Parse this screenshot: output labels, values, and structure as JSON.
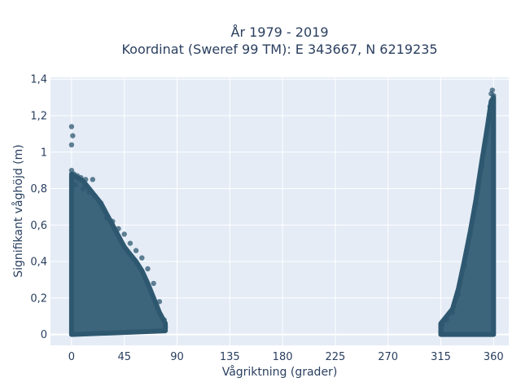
{
  "chart_data": {
    "type": "scatter",
    "title_lines": [
      "År 1979 - 2019",
      "Koordinat (Sweref 99 TM): E 343667, N 6219235"
    ],
    "xlabel": "Vågriktning (grader)",
    "ylabel": "Signifikant våghöjd (m)",
    "xlim": [
      -18,
      373
    ],
    "ylim": [
      -0.06,
      1.41
    ],
    "x_ticks": [
      0,
      45,
      90,
      135,
      180,
      225,
      270,
      315,
      360
    ],
    "x_tick_labels": [
      "0",
      "45",
      "90",
      "135",
      "180",
      "225",
      "270",
      "315",
      "360"
    ],
    "y_ticks": [
      0,
      0.2,
      0.4,
      0.6,
      0.8,
      1.0,
      1.2,
      1.4
    ],
    "y_tick_labels": [
      "0",
      "0,2",
      "0,4",
      "0,6",
      "0,8",
      "1",
      "1,2",
      "1,4"
    ],
    "grid": true,
    "legend": "none",
    "colors": {
      "marker": "#2e5870",
      "plot_bg": "#e5ecf6",
      "grid": "#ffffff",
      "text": "#2a3f5f"
    },
    "series": [
      {
        "points": [
          [
            0,
            1.14
          ],
          [
            1,
            1.09
          ],
          [
            0,
            1.04
          ],
          [
            0,
            0.9
          ],
          [
            2,
            0.88
          ],
          [
            5,
            0.87
          ],
          [
            8,
            0.86
          ],
          [
            12,
            0.85
          ],
          [
            18,
            0.85
          ],
          [
            3,
            0.82
          ],
          [
            10,
            0.8
          ],
          [
            15,
            0.78
          ],
          [
            20,
            0.76
          ],
          [
            25,
            0.72
          ],
          [
            28,
            0.68
          ],
          [
            30,
            0.64
          ],
          [
            35,
            0.62
          ],
          [
            40,
            0.58
          ],
          [
            45,
            0.55
          ],
          [
            50,
            0.5
          ],
          [
            55,
            0.46
          ],
          [
            60,
            0.42
          ],
          [
            65,
            0.36
          ],
          [
            70,
            0.28
          ],
          [
            75,
            0.18
          ],
          [
            79,
            0.08
          ],
          [
            80,
            0.04
          ],
          [
            316,
            0.05
          ],
          [
            320,
            0.08
          ],
          [
            325,
            0.12
          ],
          [
            330,
            0.22
          ],
          [
            335,
            0.38
          ],
          [
            340,
            0.55
          ],
          [
            345,
            0.72
          ],
          [
            350,
            0.92
          ],
          [
            354,
            1.1
          ],
          [
            357,
            1.25
          ],
          [
            358,
            1.32
          ],
          [
            359,
            1.34
          ],
          [
            360,
            1.31
          ]
        ]
      }
    ],
    "dense_regions": [
      {
        "x_range": [
          0,
          80
        ],
        "lower_bound": [
          [
            0,
            0.0
          ],
          [
            80,
            0.02
          ]
        ],
        "upper_bound": [
          [
            0,
            0.88
          ],
          [
            5,
            0.86
          ],
          [
            10,
            0.84
          ],
          [
            15,
            0.8
          ],
          [
            20,
            0.76
          ],
          [
            25,
            0.72
          ],
          [
            30,
            0.66
          ],
          [
            35,
            0.6
          ],
          [
            40,
            0.54
          ],
          [
            45,
            0.48
          ],
          [
            50,
            0.44
          ],
          [
            55,
            0.4
          ],
          [
            60,
            0.35
          ],
          [
            65,
            0.28
          ],
          [
            70,
            0.2
          ],
          [
            75,
            0.12
          ],
          [
            80,
            0.06
          ]
        ]
      },
      {
        "x_range": [
          315,
          360
        ],
        "lower_bound": [
          [
            315,
            0.0
          ],
          [
            360,
            0.0
          ]
        ],
        "upper_bound": [
          [
            315,
            0.06
          ],
          [
            320,
            0.1
          ],
          [
            325,
            0.14
          ],
          [
            330,
            0.25
          ],
          [
            335,
            0.4
          ],
          [
            340,
            0.56
          ],
          [
            345,
            0.74
          ],
          [
            350,
            0.95
          ],
          [
            355,
            1.15
          ],
          [
            358,
            1.28
          ],
          [
            360,
            1.3
          ]
        ]
      }
    ]
  }
}
